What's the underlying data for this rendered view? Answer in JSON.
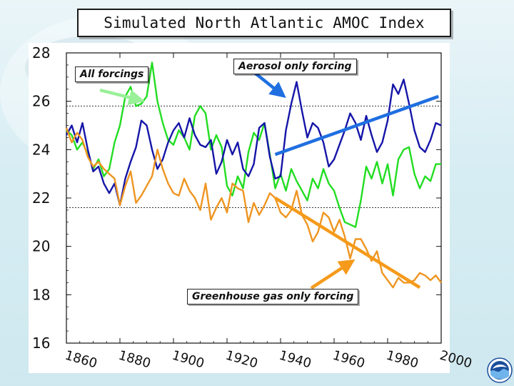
{
  "slide": {
    "title": "Simulated North Atlantic AMOC Index"
  },
  "annotations": {
    "all_forcings": "All forcings",
    "aerosol_only": "Aerosol only forcing",
    "greenhouse_only": "Greenhouse gas only forcing"
  },
  "colors": {
    "all_forcings": "#22dd22",
    "aerosol_only": "#1515a8",
    "greenhouse_only": "#ee9520",
    "all_arrow": "#99f099",
    "aerosol_arrow": "#1f6fe0",
    "greenhouse_arrow": "#f59a1a"
  },
  "logo": {
    "icon": "noaa-logo-icon"
  },
  "chart_data": {
    "type": "line",
    "title": "Simulated North Atlantic AMOC Index",
    "xlabel": "",
    "ylabel": "",
    "xlim": [
      1860,
      2000
    ],
    "ylim": [
      16,
      28
    ],
    "xticks": [
      1860,
      1880,
      1900,
      1920,
      1940,
      1960,
      1980,
      2000
    ],
    "yticks": [
      16,
      18,
      20,
      22,
      24,
      26,
      28
    ],
    "reference_lines": [
      25.8,
      21.6
    ],
    "series": [
      {
        "name": "All forcings",
        "color": "#22dd22",
        "x": [
          1860,
          1862,
          1864,
          1866,
          1868,
          1870,
          1872,
          1874,
          1876,
          1878,
          1880,
          1882,
          1884,
          1886,
          1888,
          1890,
          1892,
          1894,
          1896,
          1898,
          1900,
          1902,
          1904,
          1906,
          1908,
          1910,
          1912,
          1914,
          1916,
          1918,
          1920,
          1922,
          1924,
          1926,
          1928,
          1930,
          1932,
          1934,
          1936,
          1938,
          1940,
          1942,
          1944,
          1946,
          1948,
          1950,
          1952,
          1954,
          1956,
          1958,
          1960,
          1962,
          1964,
          1966,
          1968,
          1970,
          1972,
          1974,
          1976,
          1978,
          1980,
          1982,
          1984,
          1986,
          1988,
          1990,
          1992,
          1994,
          1996,
          1998,
          2000
        ],
        "values": [
          24.8,
          24.6,
          24.0,
          24.3,
          23.8,
          23.2,
          23.6,
          22.9,
          23.2,
          24.3,
          25.0,
          26.2,
          26.6,
          25.8,
          25.9,
          26.2,
          27.6,
          26.0,
          25.1,
          24.4,
          24.2,
          24.8,
          24.5,
          24.0,
          25.4,
          25.8,
          25.5,
          24.0,
          24.6,
          24.1,
          22.5,
          22.1,
          22.9,
          22.4,
          23.9,
          24.7,
          24.4,
          25.1,
          23.8,
          22.4,
          23.0,
          22.3,
          23.2,
          22.7,
          22.3,
          21.9,
          22.8,
          22.4,
          23.2,
          22.6,
          22.3,
          21.6,
          21.0,
          20.9,
          20.8,
          21.9,
          23.3,
          22.8,
          23.5,
          22.6,
          23.4,
          22.1,
          23.6,
          24.0,
          24.1,
          23.0,
          22.4,
          22.9,
          22.7,
          23.4,
          23.4
        ]
      },
      {
        "name": "Aerosol only forcing",
        "color": "#1515a8",
        "x": [
          1860,
          1862,
          1864,
          1866,
          1868,
          1870,
          1872,
          1874,
          1876,
          1878,
          1880,
          1882,
          1884,
          1886,
          1888,
          1890,
          1892,
          1894,
          1896,
          1898,
          1900,
          1902,
          1904,
          1906,
          1908,
          1910,
          1912,
          1914,
          1916,
          1918,
          1920,
          1922,
          1924,
          1926,
          1928,
          1930,
          1932,
          1934,
          1936,
          1938,
          1940,
          1942,
          1944,
          1946,
          1948,
          1950,
          1952,
          1954,
          1956,
          1958,
          1960,
          1962,
          1964,
          1966,
          1968,
          1970,
          1972,
          1974,
          1976,
          1978,
          1980,
          1982,
          1984,
          1986,
          1988,
          1990,
          1992,
          1994,
          1996,
          1998,
          2000
        ],
        "values": [
          24.6,
          25.0,
          24.3,
          25.1,
          24.0,
          23.1,
          23.3,
          22.6,
          22.2,
          22.6,
          21.7,
          22.8,
          23.5,
          24.1,
          25.2,
          25.0,
          24.0,
          23.2,
          23.6,
          24.3,
          24.8,
          25.1,
          24.5,
          25.3,
          24.6,
          24.2,
          24.1,
          24.4,
          23.0,
          23.5,
          24.4,
          23.8,
          24.3,
          23.2,
          22.9,
          23.4,
          24.9,
          25.1,
          23.7,
          22.8,
          22.9,
          24.8,
          25.9,
          26.8,
          25.6,
          24.5,
          25.1,
          24.9,
          24.3,
          23.3,
          23.6,
          24.2,
          24.8,
          25.5,
          25.1,
          24.4,
          25.4,
          24.6,
          23.9,
          24.3,
          25.2,
          26.7,
          26.3,
          26.9,
          25.9,
          24.8,
          24.1,
          23.9,
          24.4,
          25.1,
          25.0
        ]
      },
      {
        "name": "Greenhouse gas only forcing",
        "color": "#ee9520",
        "x": [
          1860,
          1862,
          1864,
          1866,
          1868,
          1870,
          1872,
          1874,
          1876,
          1878,
          1880,
          1882,
          1884,
          1886,
          1888,
          1890,
          1892,
          1894,
          1896,
          1898,
          1900,
          1902,
          1904,
          1906,
          1908,
          1910,
          1912,
          1914,
          1916,
          1918,
          1920,
          1922,
          1924,
          1926,
          1928,
          1930,
          1932,
          1934,
          1936,
          1938,
          1940,
          1942,
          1944,
          1946,
          1948,
          1950,
          1952,
          1954,
          1956,
          1958,
          1960,
          1962,
          1964,
          1966,
          1968,
          1970,
          1972,
          1974,
          1976,
          1978,
          1980,
          1982,
          1984,
          1986,
          1988,
          1990,
          1992,
          1994,
          1996,
          1998,
          2000
        ],
        "values": [
          24.9,
          24.3,
          24.7,
          24.4,
          23.7,
          23.3,
          23.5,
          23.2,
          23.0,
          22.8,
          21.7,
          22.5,
          23.1,
          21.8,
          22.1,
          22.5,
          22.9,
          24.0,
          23.2,
          22.6,
          22.2,
          22.1,
          22.8,
          22.3,
          22.0,
          21.5,
          22.6,
          21.1,
          21.6,
          22.0,
          21.4,
          22.6,
          22.4,
          22.3,
          21.0,
          21.8,
          21.3,
          21.7,
          22.2,
          22.0,
          21.4,
          21.2,
          21.5,
          22.3,
          21.3,
          20.9,
          20.2,
          20.6,
          21.4,
          21.2,
          20.6,
          21.1,
          20.4,
          19.5,
          20.3,
          20.3,
          19.9,
          19.4,
          19.8,
          18.9,
          18.6,
          18.3,
          18.7,
          18.5,
          18.5,
          18.6,
          18.9,
          18.8,
          18.6,
          18.8,
          18.5
        ]
      }
    ],
    "trend_arrows": [
      {
        "series": "Aerosol only forcing",
        "x": [
          1938,
          1999
        ],
        "y": [
          23.8,
          26.2
        ]
      },
      {
        "series": "Greenhouse gas only forcing",
        "x": [
          1938,
          1992
        ],
        "y": [
          22.0,
          18.3
        ]
      }
    ]
  }
}
